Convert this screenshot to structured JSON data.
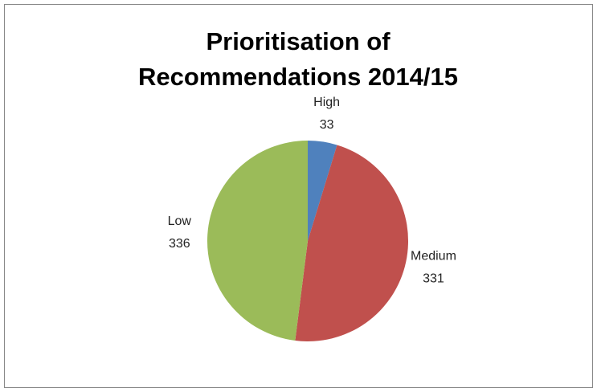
{
  "chart_data": {
    "type": "pie",
    "title": "Prioritisation of Recommendations 2014/15",
    "categories": [
      "High",
      "Medium",
      "Low"
    ],
    "values": [
      33,
      331,
      336
    ],
    "colors": [
      "#4f81bd",
      "#c0504d",
      "#9bbb59"
    ]
  }
}
